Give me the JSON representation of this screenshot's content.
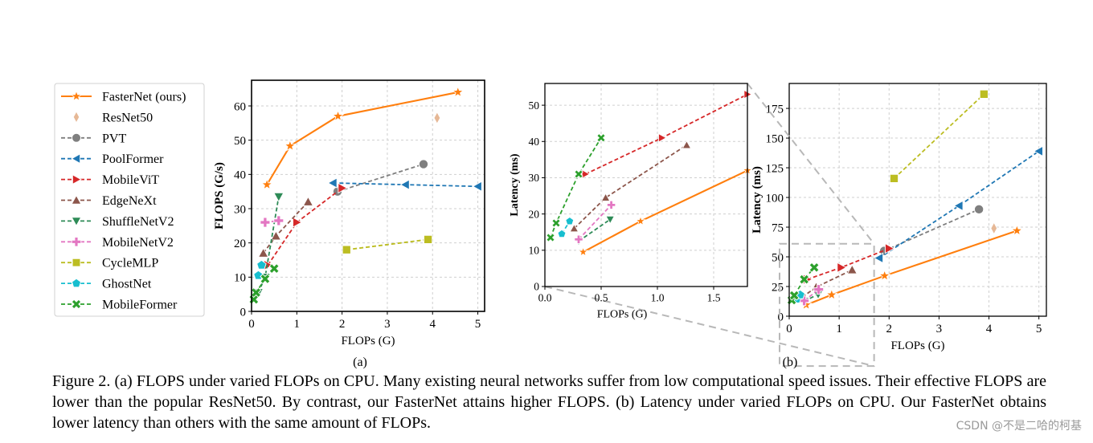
{
  "figure_caption": "Figure 2. (a) FLOPS under varied FLOPs on CPU. Many existing neural networks suffer from low computational speed issues. Their effective FLOPS are lower than the popular ResNet50. By contrast, our FasterNet attains higher FLOPS. (b) Latency under varied FLOPs on CPU. Our FasterNet obtains lower latency than others with the same amount of FLOPs.",
  "watermark": "CSDN @不是二哈的柯基",
  "subfig_labels": {
    "a": "(a)",
    "b": "(b)"
  },
  "legend": [
    {
      "name": "FasterNet (ours)",
      "color": "#ff7f0e",
      "marker": "star",
      "dashed": false,
      "line": true
    },
    {
      "name": "ResNet50",
      "color": "#e6b896",
      "marker": "diamond",
      "dashed": false,
      "line": false
    },
    {
      "name": "PVT",
      "color": "#7f7f7f",
      "marker": "circle",
      "dashed": true,
      "line": true
    },
    {
      "name": "PoolFormer",
      "color": "#1f77b4",
      "marker": "tri-left",
      "dashed": true,
      "line": true
    },
    {
      "name": "MobileViT",
      "color": "#d62728",
      "marker": "tri-right",
      "dashed": true,
      "line": true
    },
    {
      "name": "EdgeNeXt",
      "color": "#8c564b",
      "marker": "tri-up",
      "dashed": true,
      "line": true
    },
    {
      "name": "ShuffleNetV2",
      "color": "#2e8b57",
      "marker": "tri-down",
      "dashed": true,
      "line": true
    },
    {
      "name": "MobileNetV2",
      "color": "#e377c2",
      "marker": "plus",
      "dashed": true,
      "line": true
    },
    {
      "name": "CycleMLP",
      "color": "#bcbd22",
      "marker": "square",
      "dashed": true,
      "line": true
    },
    {
      "name": "GhostNet",
      "color": "#17becf",
      "marker": "pentagon",
      "dashed": true,
      "line": true
    },
    {
      "name": "MobileFormer",
      "color": "#2ca02c",
      "marker": "x",
      "dashed": true,
      "line": true
    }
  ],
  "chart_data": [
    {
      "id": "a",
      "type": "line",
      "xlabel": "FLOPs (G)",
      "ylabel": "FLOPS (G/s)",
      "xlim": [
        0,
        5.15
      ],
      "ylim": [
        0,
        67.5
      ],
      "xticks": [
        0,
        1,
        2,
        3,
        4,
        5
      ],
      "yticks": [
        0,
        10,
        20,
        30,
        40,
        50,
        60
      ],
      "grid": true,
      "series": [
        {
          "name": "FasterNet (ours)",
          "x": [
            0.34,
            0.85,
            1.91,
            4.56
          ],
          "y": [
            37,
            48.3,
            57,
            64
          ]
        },
        {
          "name": "ResNet50",
          "x": [
            4.1
          ],
          "y": [
            56.5
          ]
        },
        {
          "name": "PVT",
          "x": [
            1.9,
            3.8
          ],
          "y": [
            35,
            43
          ]
        },
        {
          "name": "PoolFormer",
          "x": [
            1.8,
            3.4,
            5.0
          ],
          "y": [
            37.5,
            37,
            36.5
          ]
        },
        {
          "name": "MobileViT",
          "x": [
            0.36,
            1.0,
            2.0
          ],
          "y": [
            13.5,
            26,
            36
          ]
        },
        {
          "name": "EdgeNeXt",
          "x": [
            0.26,
            0.54,
            1.25
          ],
          "y": [
            17,
            22,
            32
          ]
        },
        {
          "name": "ShuffleNetV2",
          "x": [
            0.15,
            0.3,
            0.6
          ],
          "y": [
            5.5,
            10,
            33.5
          ]
        },
        {
          "name": "MobileNetV2",
          "x": [
            0.3,
            0.6
          ],
          "y": [
            26,
            26.5
          ]
        },
        {
          "name": "CycleMLP",
          "x": [
            2.1,
            3.9
          ],
          "y": [
            18,
            21
          ]
        },
        {
          "name": "GhostNet",
          "x": [
            0.15,
            0.22
          ],
          "y": [
            10.5,
            13.5
          ]
        },
        {
          "name": "MobileFormer",
          "x": [
            0.05,
            0.1,
            0.3,
            0.5
          ],
          "y": [
            3.5,
            5.5,
            9.5,
            12.5
          ]
        }
      ]
    },
    {
      "id": "inset",
      "type": "line",
      "xlabel": "FLOPs (G)",
      "ylabel": "Latency (ms)",
      "xlim": [
        0,
        1.8
      ],
      "ylim": [
        0,
        56
      ],
      "xticks": [
        0.0,
        0.5,
        1.0,
        1.5
      ],
      "yticks": [
        0,
        10,
        20,
        30,
        40,
        50
      ],
      "grid": true,
      "series": [
        {
          "name": "FasterNet (ours)",
          "x": [
            0.34,
            0.85,
            1.8
          ],
          "y": [
            9.5,
            18,
            32
          ]
        },
        {
          "name": "MobileViT",
          "x": [
            0.36,
            1.04,
            1.8
          ],
          "y": [
            31,
            41,
            53
          ]
        },
        {
          "name": "EdgeNeXt",
          "x": [
            0.26,
            0.54,
            1.26
          ],
          "y": [
            16,
            24.5,
            39
          ]
        },
        {
          "name": "ShuffleNetV2",
          "x": [
            0.3,
            0.58
          ],
          "y": [
            12.5,
            18.5
          ]
        },
        {
          "name": "MobileNetV2",
          "x": [
            0.3,
            0.59
          ],
          "y": [
            13,
            22.5
          ]
        },
        {
          "name": "GhostNet",
          "x": [
            0.15,
            0.22
          ],
          "y": [
            14.5,
            18
          ]
        },
        {
          "name": "MobileFormer",
          "x": [
            0.05,
            0.1,
            0.3,
            0.5
          ],
          "y": [
            13.5,
            17.5,
            31,
            41
          ]
        }
      ]
    },
    {
      "id": "b",
      "type": "line",
      "xlabel": "FLOPs (G)",
      "ylabel": "Latency (ms)",
      "xlim": [
        0,
        5.15
      ],
      "ylim": [
        0,
        196
      ],
      "xticks": [
        0,
        1,
        2,
        3,
        4,
        5
      ],
      "yticks": [
        0,
        25,
        50,
        75,
        100,
        125,
        150,
        175
      ],
      "grid": true,
      "series": [
        {
          "name": "FasterNet (ours)",
          "x": [
            0.34,
            0.85,
            1.91,
            4.56
          ],
          "y": [
            9.5,
            18,
            34,
            72
          ]
        },
        {
          "name": "ResNet50",
          "x": [
            4.1
          ],
          "y": [
            74
          ]
        },
        {
          "name": "PVT",
          "x": [
            1.9,
            3.8
          ],
          "y": [
            55,
            90
          ]
        },
        {
          "name": "PoolFormer",
          "x": [
            1.8,
            3.4,
            5.0
          ],
          "y": [
            49,
            93,
            139
          ]
        },
        {
          "name": "MobileViT",
          "x": [
            0.36,
            1.04,
            2.0
          ],
          "y": [
            31,
            41,
            57
          ]
        },
        {
          "name": "EdgeNeXt",
          "x": [
            0.26,
            0.54,
            1.26
          ],
          "y": [
            16,
            24.5,
            39
          ]
        },
        {
          "name": "ShuffleNetV2",
          "x": [
            0.3,
            0.58
          ],
          "y": [
            12.5,
            18.5
          ]
        },
        {
          "name": "MobileNetV2",
          "x": [
            0.3,
            0.59
          ],
          "y": [
            13,
            22.5
          ]
        },
        {
          "name": "CycleMLP",
          "x": [
            2.1,
            3.9
          ],
          "y": [
            116,
            187
          ]
        },
        {
          "name": "GhostNet",
          "x": [
            0.15,
            0.22
          ],
          "y": [
            14.5,
            18
          ]
        },
        {
          "name": "MobileFormer",
          "x": [
            0.05,
            0.1,
            0.3,
            0.5
          ],
          "y": [
            13.5,
            17.5,
            31,
            41
          ]
        }
      ],
      "zoom_box": {
        "xlim": [
          0,
          1.7
        ],
        "ylim": [
          -42,
          61
        ]
      }
    }
  ]
}
